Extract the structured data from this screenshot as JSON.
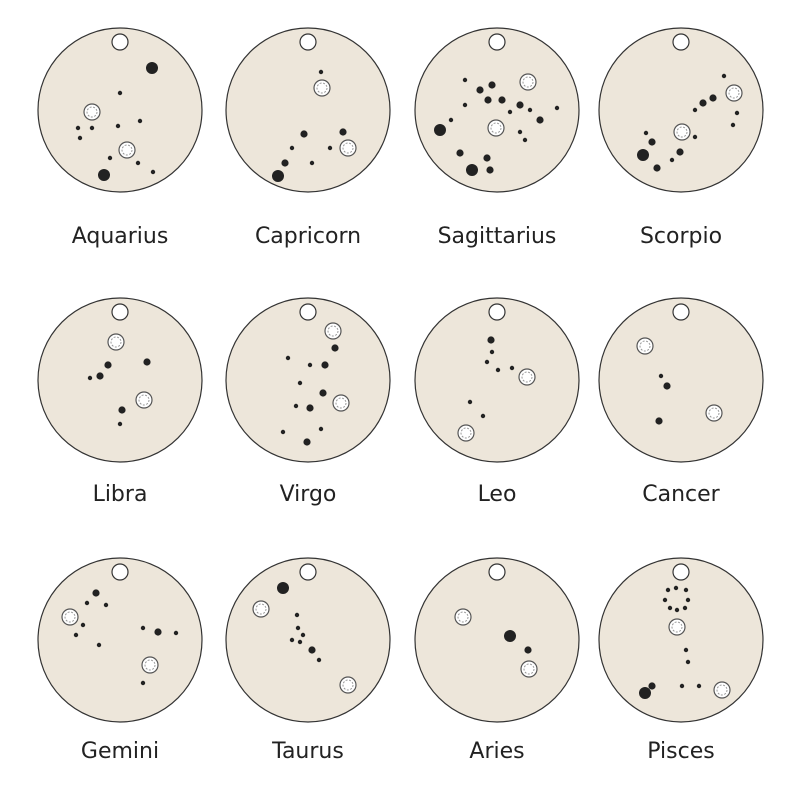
{
  "signs": [
    "Aquarius",
    "Capricorn",
    "Sagittarius",
    "Scorpio",
    "Libra",
    "Virgo",
    "Leo",
    "Cancer",
    "Gemini",
    "Taurus",
    "Aries",
    "Pisces"
  ]
}
